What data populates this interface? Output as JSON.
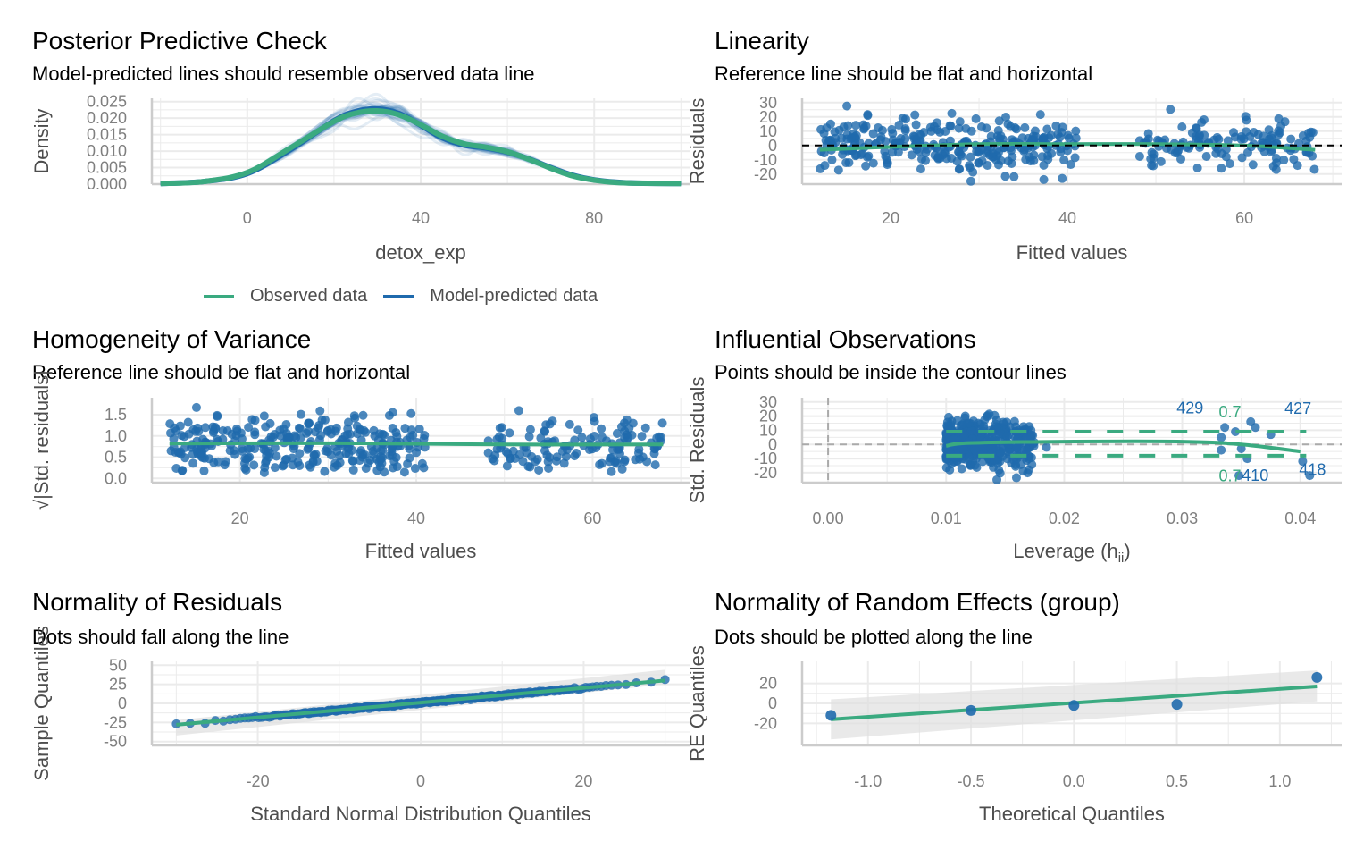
{
  "colors": {
    "observed": "#3aaa80",
    "predicted": "#1f6aad",
    "point": "#1f6aad",
    "grid": "#ebebeb",
    "axis": "#cccccc",
    "ref": "#000000",
    "ci": "#e0e0e0"
  },
  "legend": {
    "items": [
      {
        "label": "Observed data",
        "color": "#3aaa80"
      },
      {
        "label": "Model-predicted data",
        "color": "#1f6aad"
      }
    ]
  },
  "chart_data": [
    {
      "id": "ppc",
      "type": "line",
      "title": "Posterior Predictive Check",
      "subtitle": "Model-predicted lines should resemble observed data line",
      "xlabel": "detox_exp",
      "ylabel": "Density",
      "xlim": [
        -22,
        102
      ],
      "ylim": [
        0,
        0.026
      ],
      "xticks": [
        0,
        40,
        80
      ],
      "yticks": [
        0.0,
        0.005,
        0.01,
        0.015,
        0.02,
        0.025
      ],
      "ytick_labels": [
        "0.000",
        "0.005",
        "0.010",
        "0.015",
        "0.020",
        "0.025"
      ],
      "grid": true,
      "legend_position": "bottom",
      "series": [
        {
          "name": "Observed data",
          "x": [
            -20,
            -10,
            0,
            10,
            20,
            25,
            30,
            35,
            40,
            45,
            50,
            55,
            60,
            65,
            70,
            75,
            80,
            85,
            90,
            100
          ],
          "y": [
            0.0002,
            0.0008,
            0.0035,
            0.011,
            0.019,
            0.0215,
            0.0222,
            0.021,
            0.018,
            0.0145,
            0.0122,
            0.0112,
            0.0098,
            0.0075,
            0.0048,
            0.0025,
            0.0012,
            0.0005,
            0.0003,
            0.0002
          ]
        },
        {
          "name": "Model-predicted data",
          "x": [
            -20,
            -10,
            0,
            10,
            20,
            25,
            30,
            35,
            40,
            45,
            50,
            55,
            60,
            65,
            70,
            75,
            80,
            85,
            90,
            100
          ],
          "y": [
            0.0002,
            0.0008,
            0.0032,
            0.0105,
            0.0192,
            0.022,
            0.0228,
            0.0214,
            0.0178,
            0.014,
            0.0118,
            0.011,
            0.0097,
            0.0076,
            0.005,
            0.0027,
            0.0013,
            0.0006,
            0.0003,
            0.0002
          ]
        }
      ]
    },
    {
      "id": "linearity",
      "type": "scatter",
      "title": "Linearity",
      "subtitle": "Reference line should be flat and horizontal",
      "xlabel": "Fitted values",
      "ylabel": "Residuals",
      "xlim": [
        10,
        71
      ],
      "ylim": [
        -27,
        33
      ],
      "xticks": [
        20,
        40,
        60
      ],
      "yticks": [
        -20,
        -10,
        0,
        10,
        20,
        30
      ],
      "grid": true,
      "reference_line": 0,
      "clusters": [
        {
          "xmin": 12,
          "xmax": 41,
          "n": 300,
          "sd": 9
        },
        {
          "xmin": 48,
          "xmax": 68,
          "n": 130,
          "sd": 8
        }
      ],
      "smooth": {
        "x": [
          12,
          20,
          30,
          40,
          50,
          60,
          68
        ],
        "y": [
          -3,
          -1,
          1,
          1,
          1,
          0,
          -3
        ]
      }
    },
    {
      "id": "homogeneity",
      "type": "scatter",
      "title": "Homogeneity of Variance",
      "subtitle": "Reference line should be flat and horizontal",
      "xlabel": "Fitted values",
      "ylabel": "√|Std. residuals|",
      "xlim": [
        10,
        71
      ],
      "ylim": [
        -0.1,
        1.9
      ],
      "xticks": [
        20,
        40,
        60
      ],
      "yticks": [
        0.0,
        0.5,
        1.0,
        1.5
      ],
      "ytick_labels": [
        "0.0",
        "0.5",
        "1.0",
        "1.5"
      ],
      "grid": true,
      "clusters": [
        {
          "xmin": 12,
          "xmax": 41,
          "n": 300
        },
        {
          "xmin": 48,
          "xmax": 68,
          "n": 130
        }
      ],
      "smooth": {
        "x": [
          12,
          30,
          50,
          68
        ],
        "y": [
          0.82,
          0.83,
          0.8,
          0.8
        ]
      }
    },
    {
      "id": "influential",
      "type": "scatter",
      "title": "Influential Observations",
      "subtitle": "Points should be inside the contour lines",
      "xlabel": "Leverage (h",
      "xlabel_sub": "ii",
      "xlabel_end": ")",
      "ylabel": "Std. Residuals",
      "xlim": [
        -0.0022,
        0.0435
      ],
      "ylim": [
        -27,
        33
      ],
      "xticks": [
        0.0,
        0.01,
        0.02,
        0.03,
        0.04
      ],
      "xtick_labels": [
        "0.00",
        "0.01",
        "0.02",
        "0.03",
        "0.04"
      ],
      "yticks": [
        -20,
        -10,
        0,
        10,
        20,
        30
      ],
      "grid": true,
      "cook_contour_upper": 9,
      "cook_contour_lower": -8,
      "contour_labels": [
        "0.7",
        "0.7"
      ],
      "labeled_points": [
        {
          "label": "429",
          "x": 0.0333,
          "y": 17
        },
        {
          "label": "427",
          "x": 0.037,
          "y": 18
        },
        {
          "label": "410",
          "x": 0.0355,
          "y": -17
        },
        {
          "label": "418",
          "x": 0.0405,
          "y": -14
        }
      ],
      "smooth": {
        "x": [
          0.01,
          0.012,
          0.02,
          0.03,
          0.035,
          0.04
        ],
        "y": [
          -1,
          1,
          2,
          2,
          0,
          -5
        ]
      }
    },
    {
      "id": "qq-residuals",
      "type": "scatter",
      "title": "Normality of Residuals",
      "subtitle": "Dots should fall along the line",
      "xlabel": "Standard Normal Distribution Quantiles",
      "ylabel": "Sample Quantiles",
      "xlim": [
        -33,
        33
      ],
      "ylim": [
        -55,
        55
      ],
      "xticks": [
        -20,
        0,
        20
      ],
      "yticks": [
        -50,
        -25,
        0,
        25,
        50
      ],
      "grid": true,
      "line": {
        "x": [
          -30,
          30
        ],
        "y": [
          -28,
          30
        ]
      },
      "band": {
        "x": [
          -30,
          30
        ],
        "lower": [
          -42,
          25
        ],
        "upper": [
          -22,
          44
        ]
      }
    },
    {
      "id": "qq-random-effects",
      "type": "scatter",
      "title": "Normality of Random Effects (group)",
      "subtitle": "Dots should be plotted along the line",
      "xlabel": "Theoretical Quantiles",
      "ylabel": "RE Quantiles",
      "xlim": [
        -1.32,
        1.3
      ],
      "ylim": [
        -42,
        42
      ],
      "xticks": [
        -1.0,
        -0.5,
        0.0,
        0.5,
        1.0
      ],
      "xtick_labels": [
        "-1.0",
        "-0.5",
        "0.0",
        "0.5",
        "1.0"
      ],
      "yticks": [
        -20,
        0,
        20
      ],
      "grid": true,
      "points": [
        {
          "x": -1.18,
          "y": -12
        },
        {
          "x": -0.5,
          "y": -7
        },
        {
          "x": 0.0,
          "y": -2
        },
        {
          "x": 0.5,
          "y": -1
        },
        {
          "x": 1.18,
          "y": 26
        }
      ],
      "line": {
        "x": [
          -1.18,
          1.18
        ],
        "y": [
          -16,
          17
        ]
      },
      "band": {
        "x": [
          -1.18,
          1.18
        ],
        "lower": [
          -36,
          2
        ],
        "upper": [
          4,
          33
        ]
      }
    }
  ]
}
